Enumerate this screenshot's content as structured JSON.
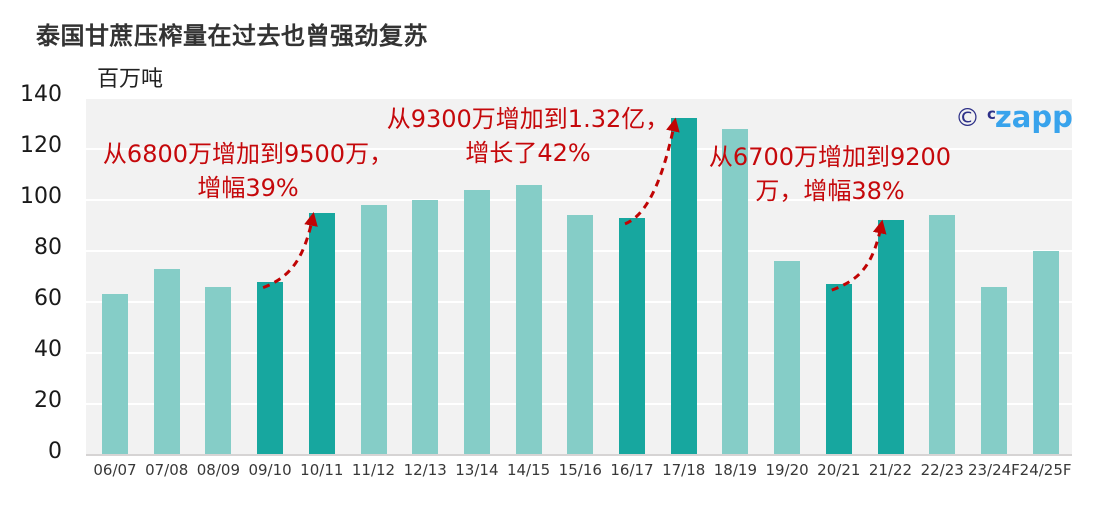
{
  "logo": {
    "copyright_symbol": "©",
    "superscript": "c",
    "name": "zapp"
  },
  "colors": {
    "plot_background": "#f2f2f2",
    "gridline": "#ffffff",
    "bar": "#85cdc7",
    "bar_highlight": "#17a79f",
    "annotation_red": "#c5080b",
    "arrow_red": "#c00404",
    "logo_navy": "#2e3188",
    "logo_blue": "#38a3ec",
    "title_text": "#333333"
  },
  "chart_data": {
    "type": "bar",
    "title": "泰国甘蔗压榨量在过去也曾强劲复苏",
    "ylabel": "百万吨",
    "ylim": [
      0,
      140
    ],
    "ytick_step": 20,
    "yticks": [
      "0",
      "20",
      "40",
      "60",
      "80",
      "100",
      "120",
      "140"
    ],
    "grid": "horizontal-white-on-gray",
    "categories": [
      "06/07",
      "07/08",
      "08/09",
      "09/10",
      "10/11",
      "11/12",
      "12/13",
      "13/14",
      "14/15",
      "15/16",
      "16/17",
      "17/18",
      "18/19",
      "19/20",
      "20/21",
      "21/22",
      "22/23",
      "23/24F",
      "24/25F"
    ],
    "values": [
      63,
      73,
      66,
      68,
      95,
      98,
      100,
      104,
      106,
      94,
      93,
      132,
      128,
      76,
      67,
      92,
      94,
      66,
      80
    ],
    "highlight_categories": [
      "09/10",
      "10/11",
      "16/17",
      "17/18",
      "20/21",
      "21/22"
    ],
    "annotations": [
      {
        "lines": [
          "从6800万增加到9500万，",
          "增幅39%"
        ],
        "from": "09/10",
        "to": "10/11"
      },
      {
        "lines": [
          "从9300万增加到1.32亿，",
          "增长了42%"
        ],
        "from": "16/17",
        "to": "17/18"
      },
      {
        "lines": [
          "从6700万增加到9200",
          "万，增幅38%"
        ],
        "from": "20/21",
        "to": "21/22"
      }
    ]
  }
}
